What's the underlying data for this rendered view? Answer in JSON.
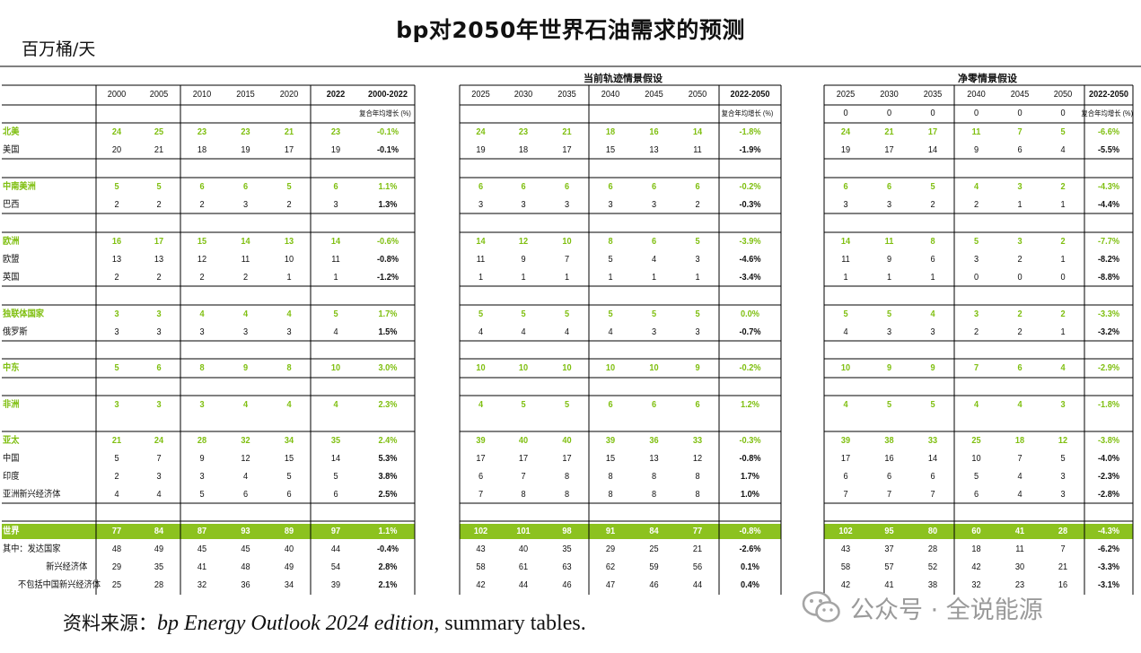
{
  "title": "bp对2050年世界石油需求的预测",
  "unit": "百万桶/天",
  "source": {
    "prefix": "资料来源：",
    "italic": "bp Energy Outlook 2024 edition",
    "suffix": ", summary tables."
  },
  "watermark": "公众号 · 全说能源",
  "sections": {
    "current": "当前轨迹情景假设",
    "netzero": "净零情景假设"
  },
  "headers": {
    "hist_years": [
      "2000",
      "2005",
      "2010",
      "2015",
      "2020",
      "2022",
      "2000-2022"
    ],
    "proj_years": [
      "2025",
      "2030",
      "2035",
      "2040",
      "2045",
      "2050",
      "2022-2050"
    ],
    "nz_years": [
      "2025",
      "2030",
      "2035",
      "2040",
      "2045",
      "2050",
      "2022-2050"
    ],
    "cagr_label": "复合年均增长 (%)",
    "nz_zeros": [
      "0",
      "0",
      "0",
      "0",
      "0",
      "0"
    ]
  },
  "colors": {
    "green": "#7fbf10",
    "band": "#8cc21f",
    "grid": "#000000"
  },
  "rows": [
    {
      "label": "北美",
      "type": "region",
      "vals": [
        "24",
        "25",
        "23",
        "23",
        "21",
        "23",
        "-0.1%",
        "24",
        "23",
        "21",
        "18",
        "16",
        "14",
        "-1.8%",
        "24",
        "21",
        "17",
        "11",
        "7",
        "5",
        "-6.6%"
      ]
    },
    {
      "label": "美国",
      "type": "sub",
      "vals": [
        "20",
        "21",
        "18",
        "19",
        "17",
        "19",
        "-0.1%",
        "19",
        "18",
        "17",
        "15",
        "13",
        "11",
        "-1.9%",
        "19",
        "17",
        "14",
        "9",
        "6",
        "4",
        "-5.5%"
      ]
    },
    {
      "label": "中南美洲",
      "type": "region",
      "vals": [
        "5",
        "5",
        "6",
        "6",
        "5",
        "6",
        "1.1%",
        "6",
        "6",
        "6",
        "6",
        "6",
        "6",
        "-0.2%",
        "6",
        "6",
        "5",
        "4",
        "3",
        "2",
        "-4.3%"
      ]
    },
    {
      "label": "巴西",
      "type": "sub",
      "vals": [
        "2",
        "2",
        "2",
        "3",
        "2",
        "3",
        "1.3%",
        "3",
        "3",
        "3",
        "3",
        "3",
        "2",
        "-0.3%",
        "3",
        "3",
        "2",
        "2",
        "1",
        "1",
        "-4.4%"
      ]
    },
    {
      "label": "欧洲",
      "type": "region",
      "vals": [
        "16",
        "17",
        "15",
        "14",
        "13",
        "14",
        "-0.6%",
        "14",
        "12",
        "10",
        "8",
        "6",
        "5",
        "-3.9%",
        "14",
        "11",
        "8",
        "5",
        "3",
        "2",
        "-7.7%"
      ]
    },
    {
      "label": "欧盟",
      "type": "sub",
      "vals": [
        "13",
        "13",
        "12",
        "11",
        "10",
        "11",
        "-0.8%",
        "11",
        "9",
        "7",
        "5",
        "4",
        "3",
        "-4.6%",
        "11",
        "9",
        "6",
        "3",
        "2",
        "1",
        "-8.2%"
      ]
    },
    {
      "label": "英国",
      "type": "sub",
      "vals": [
        "2",
        "2",
        "2",
        "2",
        "1",
        "1",
        "-1.2%",
        "1",
        "1",
        "1",
        "1",
        "1",
        "1",
        "-3.4%",
        "1",
        "1",
        "1",
        "0",
        "0",
        "0",
        "-8.8%"
      ]
    },
    {
      "label": "独联体国家",
      "type": "region",
      "vals": [
        "3",
        "3",
        "4",
        "4",
        "4",
        "5",
        "1.7%",
        "5",
        "5",
        "5",
        "5",
        "5",
        "5",
        "0.0%",
        "5",
        "5",
        "4",
        "3",
        "2",
        "2",
        "-3.3%"
      ]
    },
    {
      "label": "俄罗斯",
      "type": "sub",
      "vals": [
        "3",
        "3",
        "3",
        "3",
        "3",
        "4",
        "1.5%",
        "4",
        "4",
        "4",
        "4",
        "3",
        "3",
        "-0.7%",
        "4",
        "3",
        "3",
        "2",
        "2",
        "1",
        "-3.2%"
      ]
    },
    {
      "label": "中东",
      "type": "region",
      "vals": [
        "5",
        "6",
        "8",
        "9",
        "8",
        "10",
        "3.0%",
        "10",
        "10",
        "10",
        "10",
        "10",
        "9",
        "-0.2%",
        "10",
        "9",
        "9",
        "7",
        "6",
        "4",
        "-2.9%"
      ]
    },
    {
      "label": "非洲",
      "type": "region",
      "vals": [
        "3",
        "3",
        "3",
        "4",
        "4",
        "4",
        "2.3%",
        "4",
        "5",
        "5",
        "6",
        "6",
        "6",
        "1.2%",
        "4",
        "5",
        "5",
        "4",
        "4",
        "3",
        "-1.8%"
      ]
    },
    {
      "label": "亚太",
      "type": "region",
      "vals": [
        "21",
        "24",
        "28",
        "32",
        "34",
        "35",
        "2.4%",
        "39",
        "40",
        "40",
        "39",
        "36",
        "33",
        "-0.3%",
        "39",
        "38",
        "33",
        "25",
        "18",
        "12",
        "-3.8%"
      ]
    },
    {
      "label": "中国",
      "type": "sub",
      "vals": [
        "5",
        "7",
        "9",
        "12",
        "15",
        "14",
        "5.3%",
        "17",
        "17",
        "17",
        "15",
        "13",
        "12",
        "-0.8%",
        "17",
        "16",
        "14",
        "10",
        "7",
        "5",
        "-4.0%"
      ]
    },
    {
      "label": "印度",
      "type": "sub",
      "vals": [
        "2",
        "3",
        "3",
        "4",
        "5",
        "5",
        "3.8%",
        "6",
        "7",
        "8",
        "8",
        "8",
        "8",
        "1.7%",
        "6",
        "6",
        "6",
        "5",
        "4",
        "3",
        "-2.3%"
      ]
    },
    {
      "label": "亚洲新兴经济体",
      "type": "sub",
      "vals": [
        "4",
        "4",
        "5",
        "6",
        "6",
        "6",
        "2.5%",
        "7",
        "8",
        "8",
        "8",
        "8",
        "8",
        "1.0%",
        "7",
        "7",
        "7",
        "6",
        "4",
        "3",
        "-2.8%"
      ]
    },
    {
      "label": "世界",
      "type": "world",
      "vals": [
        "77",
        "84",
        "87",
        "93",
        "89",
        "97",
        "1.1%",
        "102",
        "101",
        "98",
        "91",
        "84",
        "77",
        "-0.8%",
        "102",
        "95",
        "80",
        "60",
        "41",
        "28",
        "-4.3%"
      ]
    },
    {
      "label": "其中：发达国家",
      "type": "sub",
      "vals": [
        "48",
        "49",
        "45",
        "45",
        "40",
        "44",
        "-0.4%",
        "43",
        "40",
        "35",
        "29",
        "25",
        "21",
        "-2.6%",
        "43",
        "37",
        "28",
        "18",
        "11",
        "7",
        "-6.2%"
      ]
    },
    {
      "label": "新兴经济体",
      "type": "sub2",
      "vals": [
        "29",
        "35",
        "41",
        "48",
        "49",
        "54",
        "2.8%",
        "58",
        "61",
        "63",
        "62",
        "59",
        "56",
        "0.1%",
        "58",
        "57",
        "52",
        "42",
        "30",
        "21",
        "-3.3%"
      ]
    },
    {
      "label": "不包括中国新兴经济体",
      "type": "sub2",
      "vals": [
        "25",
        "28",
        "32",
        "36",
        "34",
        "39",
        "2.1%",
        "42",
        "44",
        "46",
        "47",
        "46",
        "44",
        "0.4%",
        "42",
        "41",
        "38",
        "32",
        "23",
        "16",
        "-3.1%"
      ]
    }
  ]
}
